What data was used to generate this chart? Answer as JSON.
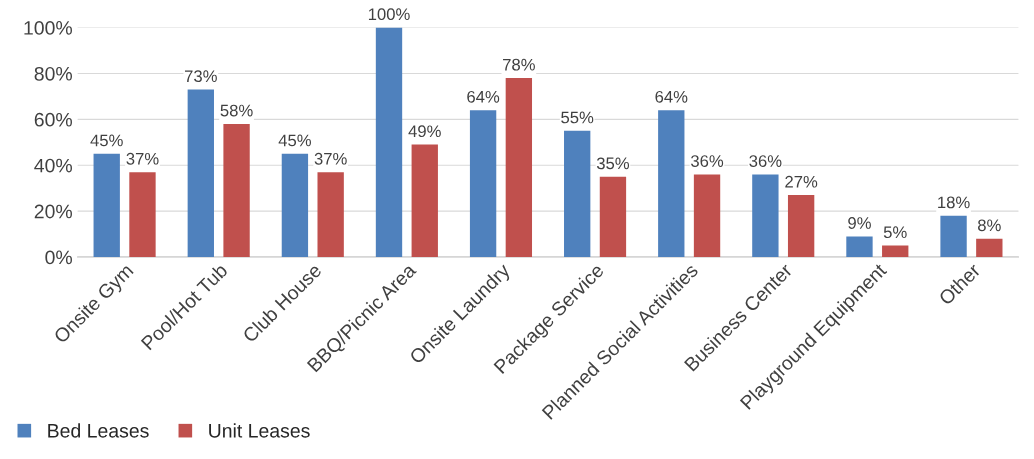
{
  "chart_data": {
    "type": "bar",
    "categories": [
      "Onsite Gym",
      "Pool/Hot Tub",
      "Club House",
      "BBQ/Picnic Area",
      "Onsite Laundry",
      "Package Service",
      "Planned Social Activities",
      "Business Center",
      "Playground Equipment",
      "Other"
    ],
    "series": [
      {
        "name": "Bed Leases",
        "color": "#4f81bd",
        "values": [
          45,
          73,
          45,
          100,
          64,
          55,
          64,
          36,
          9,
          18
        ],
        "value_labels": [
          "45%",
          "73%",
          "45%",
          "100%",
          "64%",
          "55%",
          "64%",
          "36%",
          "9%",
          "18%"
        ]
      },
      {
        "name": "Unit Leases",
        "color": "#c0504d",
        "values": [
          37,
          58,
          37,
          49,
          78,
          35,
          36,
          27,
          5,
          8
        ],
        "value_labels": [
          "37%",
          "58%",
          "37%",
          "49%",
          "78%",
          "35%",
          "36%",
          "27%",
          "5%",
          "8%"
        ]
      }
    ],
    "ylim": [
      0,
      100
    ],
    "yticks": [
      {
        "value": 0,
        "label": "0%"
      },
      {
        "value": 20,
        "label": "20%"
      },
      {
        "value": 40,
        "label": "40%"
      },
      {
        "value": 60,
        "label": "60%"
      },
      {
        "value": 80,
        "label": "80%"
      },
      {
        "value": 100,
        "label": "100%"
      }
    ],
    "grid": "y",
    "legend": "bottom left"
  }
}
